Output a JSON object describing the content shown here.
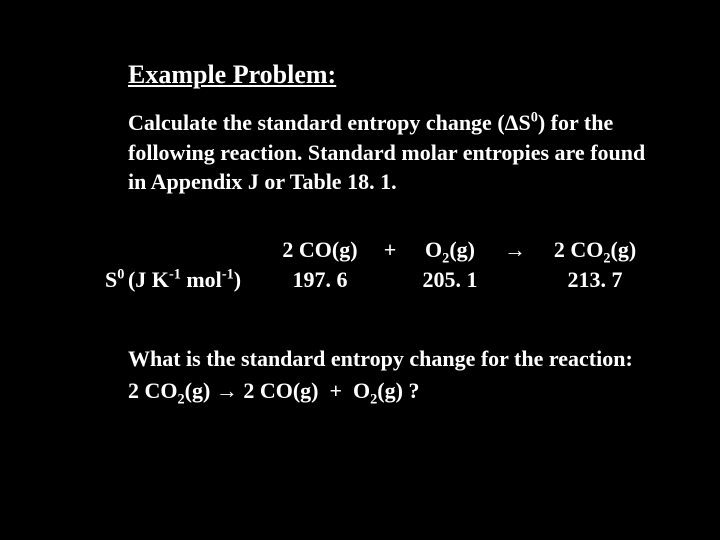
{
  "heading": "Example Problem:",
  "prompt_part1": "Calculate the standard entropy change (",
  "prompt_delta": "Δ",
  "prompt_s": "S",
  "prompt_zero": "0",
  "prompt_part2": ") for the following reaction.  Standard molar entropies are found in Appendix J or Table 18. 1.",
  "label_s": "S",
  "label_zero": "0 ",
  "label_units1": "(J K",
  "label_exp1": "-1",
  "label_units2": " mol",
  "label_exp2": "-1",
  "label_units3": ")",
  "eq_2": "2 ",
  "eq_co": "CO(g)",
  "eq_plus": "+",
  "eq_o": "O",
  "eq_sub2": "2",
  "eq_g": "(g)",
  "eq_arrow": "→",
  "eq_co2a": "CO",
  "val1": "197. 6",
  "val2": "205. 1",
  "val3": "213. 7",
  "q_part1": "What is the standard entropy change for the reaction:",
  "q_indent": "   ",
  "q_qmark": " ?"
}
